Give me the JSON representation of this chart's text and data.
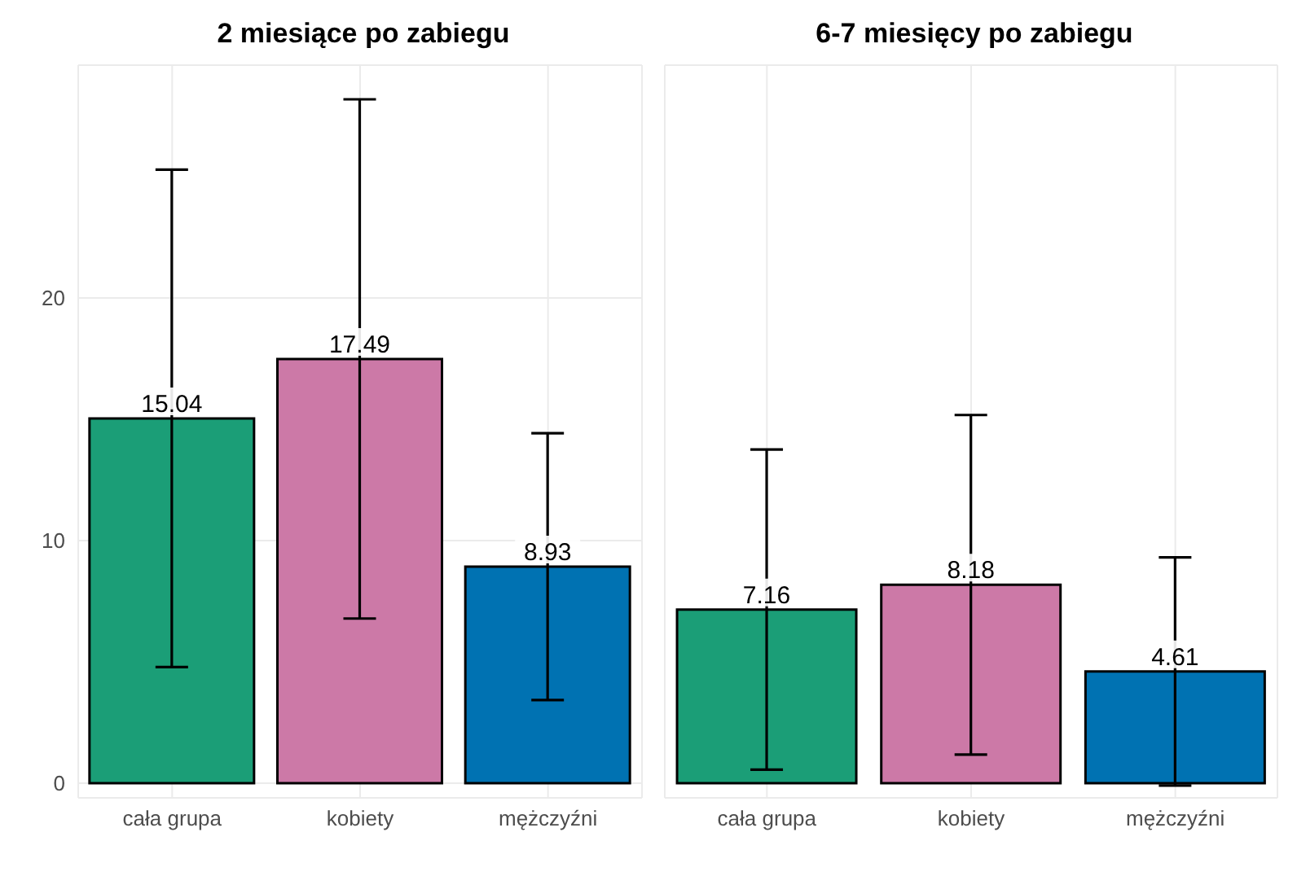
{
  "chart_data": [
    {
      "type": "bar",
      "title": "2 miesiące po zabiegu",
      "categories": [
        "cała grupa",
        "kobiety",
        "mężczyźni"
      ],
      "values": [
        15.04,
        17.49,
        8.93
      ],
      "colors": [
        "#1b9e77",
        "#cc79a7",
        "#0072b2"
      ],
      "errors": [
        10.25,
        10.7,
        5.5
      ],
      "data_labels": true,
      "ylim": [
        -0.6,
        29.6
      ],
      "yticks": [
        0,
        10,
        20
      ],
      "grid": true
    },
    {
      "type": "bar",
      "title": "6-7 miesięcy po zabiegu",
      "categories": [
        "cała grupa",
        "kobiety",
        "mężczyźni"
      ],
      "values": [
        7.16,
        8.18,
        4.61
      ],
      "colors": [
        "#1b9e77",
        "#cc79a7",
        "#0072b2"
      ],
      "errors": [
        6.6,
        7.0,
        4.7
      ],
      "data_labels": true,
      "ylim": [
        -0.6,
        29.6
      ],
      "yticks": [
        0,
        10,
        20
      ],
      "grid": true,
      "tick_labels": "x"
    }
  ]
}
